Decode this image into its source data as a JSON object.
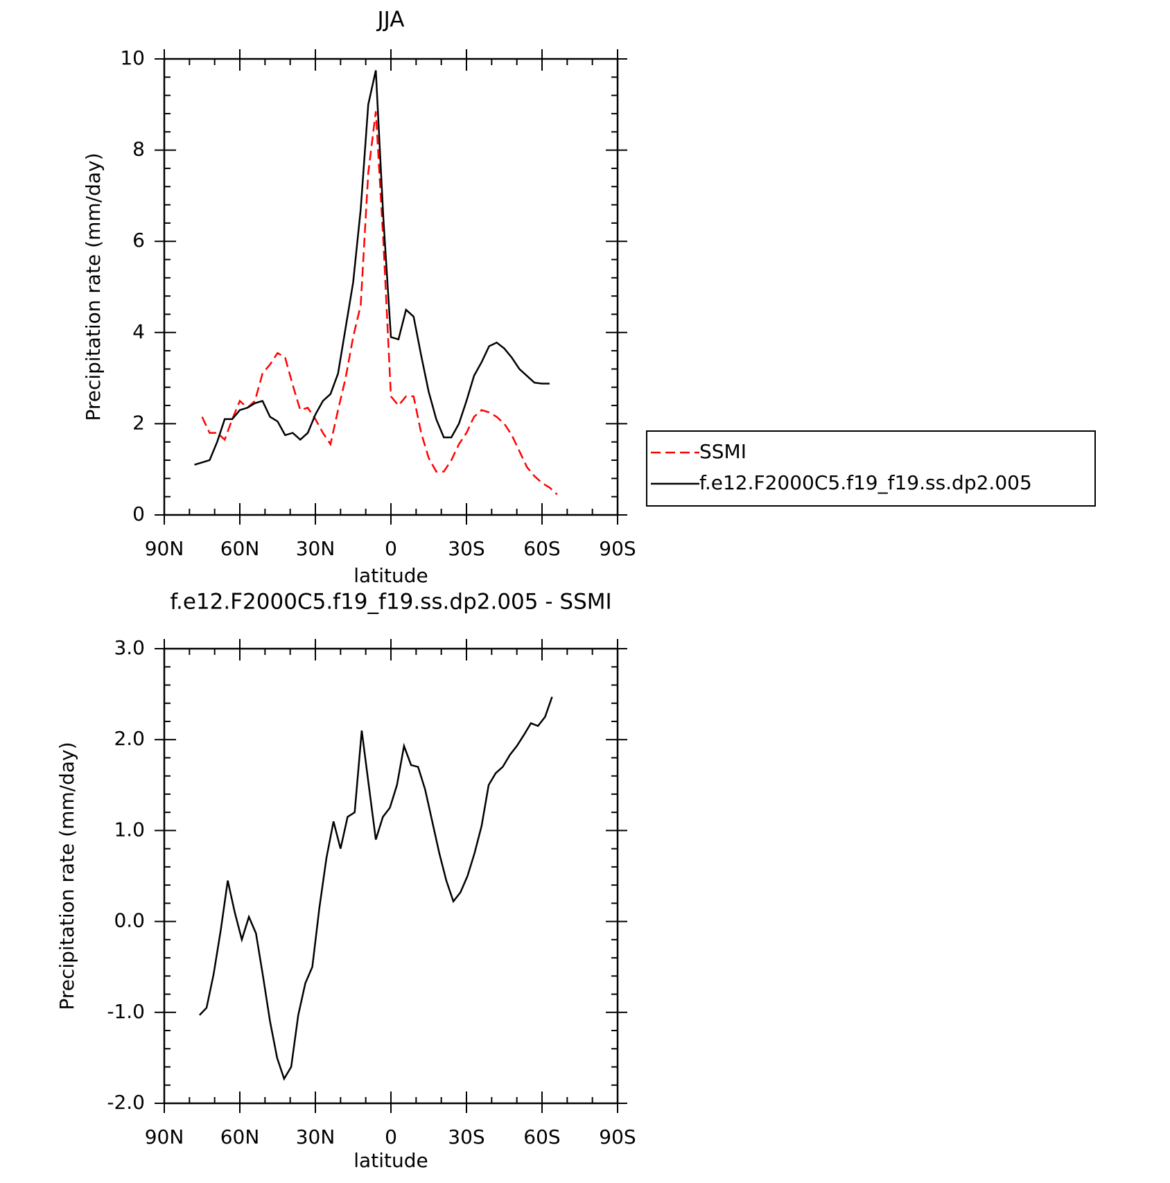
{
  "chart_data": [
    {
      "type": "line",
      "title": "JJA",
      "xlabel": "latitude",
      "ylabel": "Precipitation rate (mm/day)",
      "xlim": [
        90,
        -90
      ],
      "xticks": [
        {
          "value": 90,
          "label": "90N"
        },
        {
          "value": 60,
          "label": "60N"
        },
        {
          "value": 30,
          "label": "30N"
        },
        0,
        {
          "value": -30,
          "label": "30S"
        },
        {
          "value": -60,
          "label": "60S"
        },
        {
          "value": -90,
          "label": "90S"
        }
      ],
      "ylim": [
        0,
        10
      ],
      "yticks": [
        0,
        2,
        4,
        6,
        8,
        10
      ],
      "legend": "right",
      "series": [
        {
          "name": "SSMI",
          "color": "#ff0000",
          "dashed": true,
          "x": [
            75,
            72,
            69,
            66,
            63,
            60,
            57,
            54,
            51,
            48,
            45,
            42,
            39,
            36,
            33,
            30,
            27,
            24,
            21,
            18,
            15,
            12,
            9,
            6,
            3,
            0,
            -3,
            -6,
            -9,
            -12,
            -15,
            -18,
            -21,
            -24,
            -27,
            -30,
            -33,
            -36,
            -39,
            -42,
            -45,
            -48,
            -51,
            -54,
            -57,
            -60,
            -63,
            -66
          ],
          "values": [
            2.15,
            1.8,
            1.8,
            1.65,
            2.1,
            2.5,
            2.35,
            2.5,
            3.1,
            3.3,
            3.55,
            3.45,
            2.85,
            2.3,
            2.35,
            2.1,
            1.8,
            1.55,
            2.3,
            3.0,
            3.9,
            4.6,
            7.5,
            8.85,
            6.0,
            2.6,
            2.4,
            2.6,
            2.6,
            1.8,
            1.25,
            0.95,
            0.95,
            1.2,
            1.55,
            1.8,
            2.15,
            2.3,
            2.25,
            2.15,
            2.0,
            1.75,
            1.4,
            1.05,
            0.85,
            0.7,
            0.6,
            0.45
          ]
        },
        {
          "name": "f.e12.F2000C5.f19_f19.ss.dp2.005",
          "color": "#000000",
          "dashed": false,
          "x": [
            78,
            75,
            72,
            69,
            66,
            63,
            60,
            57,
            54,
            51,
            48,
            45,
            42,
            39,
            36,
            33,
            30,
            27,
            24,
            21,
            18,
            15,
            12,
            9,
            6,
            3,
            0,
            -3,
            -6,
            -9,
            -12,
            -15,
            -18,
            -21,
            -24,
            -27,
            -30,
            -33,
            -36,
            -39,
            -42,
            -45,
            -48,
            -51,
            -54,
            -57,
            -60,
            -63
          ],
          "values": [
            1.1,
            1.15,
            1.2,
            1.6,
            2.1,
            2.1,
            2.3,
            2.35,
            2.45,
            2.5,
            2.15,
            2.05,
            1.75,
            1.8,
            1.65,
            1.8,
            2.2,
            2.5,
            2.65,
            3.1,
            4.1,
            5.1,
            6.7,
            9.0,
            9.75,
            6.5,
            3.9,
            3.85,
            4.5,
            4.35,
            3.5,
            2.7,
            2.1,
            1.7,
            1.7,
            2.0,
            2.5,
            3.05,
            3.35,
            3.7,
            3.78,
            3.65,
            3.45,
            3.2,
            3.05,
            2.9,
            2.88,
            2.88
          ]
        }
      ]
    },
    {
      "type": "line",
      "title": "f.e12.F2000C5.f19_f19.ss.dp2.005 - SSMI",
      "xlabel": "latitude",
      "ylabel": "Precipitation rate (mm/day)",
      "xlim": [
        90,
        -90
      ],
      "xticks": [
        {
          "value": 90,
          "label": "90N"
        },
        {
          "value": 60,
          "label": "60N"
        },
        {
          "value": 30,
          "label": "30N"
        },
        0,
        {
          "value": -30,
          "label": "30S"
        },
        {
          "value": -60,
          "label": "60S"
        },
        {
          "value": -90,
          "label": "90S"
        }
      ],
      "ylim": [
        -2,
        3
      ],
      "yticks": [
        {
          "value": -2,
          "label": "-2.0"
        },
        {
          "value": -1,
          "label": "-1.0"
        },
        {
          "value": 0,
          "label": "0.0"
        },
        {
          "value": 1,
          "label": "1.0"
        },
        {
          "value": 2,
          "label": "2.0"
        },
        {
          "value": 3,
          "label": "3.0"
        }
      ],
      "series": [
        {
          "color": "#000000",
          "dashed": false,
          "x": [
            76,
            73.2,
            70.4,
            67.6,
            64.8,
            62,
            59.2,
            56.4,
            53.6,
            50.8,
            48,
            45.2,
            42.4,
            39.6,
            36.8,
            34,
            31.2,
            28.4,
            25.6,
            22.8,
            20,
            17.2,
            14.4,
            11.6,
            8.8,
            6,
            3.2,
            0.4,
            -2.4,
            -5.2,
            -8,
            -10.8,
            -13.6,
            -16.4,
            -19.2,
            -22,
            -24.8,
            -27.6,
            -30.4,
            -33.2,
            -36,
            -38.8,
            -41.6,
            -44.4,
            -47.2,
            -50,
            -52.8,
            -55.6,
            -58.4,
            -61.2,
            -64
          ],
          "values": [
            -1.03,
            -0.95,
            -0.58,
            -0.1,
            0.45,
            0.1,
            -0.2,
            0.05,
            -0.13,
            -0.6,
            -1.1,
            -1.5,
            -1.73,
            -1.6,
            -1.03,
            -0.68,
            -0.5,
            0.15,
            0.7,
            1.1,
            0.8,
            1.15,
            1.2,
            2.1,
            1.5,
            0.9,
            1.15,
            1.25,
            1.5,
            1.93,
            1.72,
            1.7,
            1.45,
            1.1,
            0.75,
            0.45,
            0.22,
            0.32,
            0.5,
            0.75,
            1.05,
            1.5,
            1.63,
            1.7,
            1.83,
            1.93,
            2.05,
            2.18,
            2.15,
            2.25,
            2.47
          ]
        }
      ]
    }
  ]
}
